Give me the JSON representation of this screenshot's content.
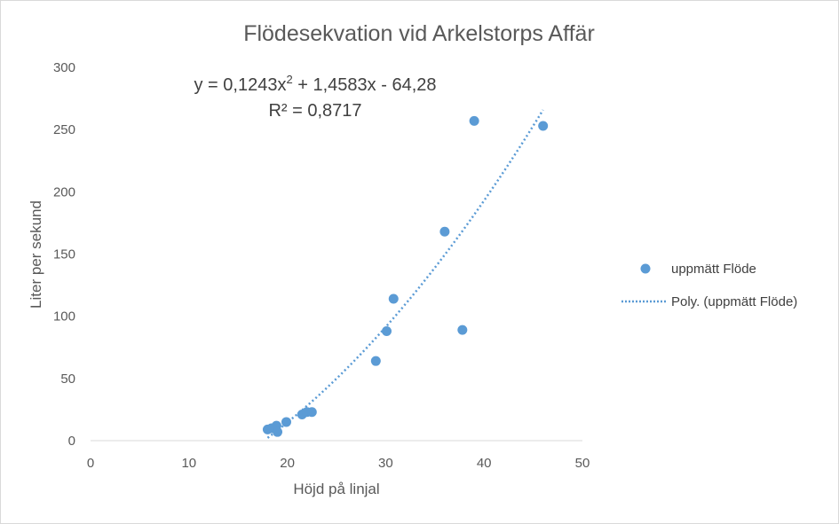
{
  "chart_data": {
    "type": "scatter",
    "title": "Flödesekvation vid Arkelstorps Affär",
    "xlabel": "Höjd på linjal",
    "ylabel": "Liter per sekund",
    "xlim": [
      0,
      50
    ],
    "ylim": [
      0,
      300
    ],
    "x_ticks": [
      0,
      10,
      20,
      30,
      40,
      50
    ],
    "y_ticks": [
      0,
      50,
      100,
      150,
      200,
      250,
      300
    ],
    "grid": false,
    "legend_position": "right",
    "series": [
      {
        "name": "uppmätt Flöde",
        "kind": "points",
        "color": "#5b9bd5",
        "points": [
          [
            18.0,
            9
          ],
          [
            18.4,
            10
          ],
          [
            18.9,
            12
          ],
          [
            19.0,
            7
          ],
          [
            19.9,
            15
          ],
          [
            21.5,
            21
          ],
          [
            22.0,
            23
          ],
          [
            22.5,
            23
          ],
          [
            29.0,
            64
          ],
          [
            30.1,
            88
          ],
          [
            30.8,
            114
          ],
          [
            36.0,
            168
          ],
          [
            37.8,
            89
          ],
          [
            39.0,
            257
          ],
          [
            46.0,
            253
          ]
        ]
      },
      {
        "name": "Poly. (uppmätt Flöde)",
        "kind": "trendline",
        "color": "#5b9bd5",
        "style": "dotted",
        "coefficients": [
          0.1243,
          1.4583,
          -64.28
        ],
        "x_range": [
          18,
          46
        ]
      }
    ],
    "annotations": {
      "equation": "y = 0,1243x",
      "equation_sup": "2",
      "equation_rest": " + 1,4583x - 64,28",
      "r_squared": "R² = 0,8717"
    }
  }
}
